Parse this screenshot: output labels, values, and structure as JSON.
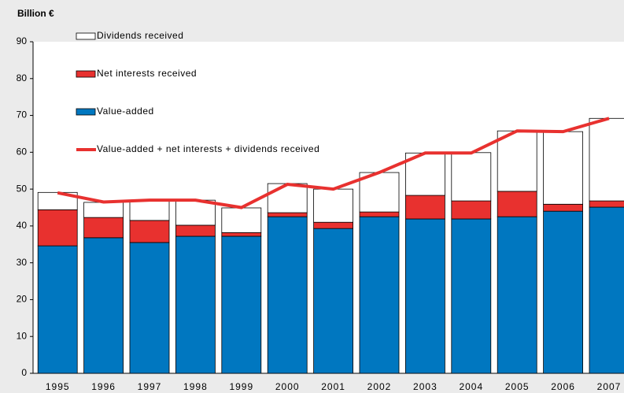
{
  "chart_data": {
    "type": "bar",
    "stacked": true,
    "y_label": "Billion €",
    "categories": [
      "1995",
      "1996",
      "1997",
      "1998",
      "1999",
      "2000",
      "2001",
      "2002",
      "2003",
      "2004",
      "2005",
      "2006",
      "2007"
    ],
    "series": [
      {
        "name": "Value-added",
        "color": "#0077c0",
        "values": [
          34.6,
          36.8,
          35.5,
          37.2,
          37.2,
          42.5,
          39.3,
          42.5,
          41.9,
          41.9,
          42.5,
          44.0,
          45.1
        ]
      },
      {
        "name": "Net interests received",
        "color": "#e8312f",
        "values": [
          9.8,
          5.5,
          6.0,
          3.0,
          1.0,
          1.1,
          1.7,
          1.3,
          6.4,
          4.9,
          6.9,
          1.9,
          1.7
        ]
      },
      {
        "name": "Dividends received",
        "color": "#ffffff",
        "values": [
          4.7,
          4.1,
          5.5,
          6.8,
          6.7,
          7.9,
          9.0,
          10.7,
          11.5,
          13.1,
          16.4,
          19.7,
          22.4
        ]
      },
      {
        "name": "Value-added  + net interests + dividends received",
        "color": "#e8312f",
        "type": "line",
        "values": [
          49.0,
          46.5,
          47.0,
          47.0,
          45.0,
          51.3,
          50.0,
          54.5,
          59.8,
          59.8,
          65.8,
          65.6,
          69.2
        ]
      }
    ],
    "ylim": [
      0,
      90
    ],
    "yticks": [
      0,
      10,
      20,
      30,
      40,
      50,
      60,
      70,
      80,
      90
    ]
  }
}
